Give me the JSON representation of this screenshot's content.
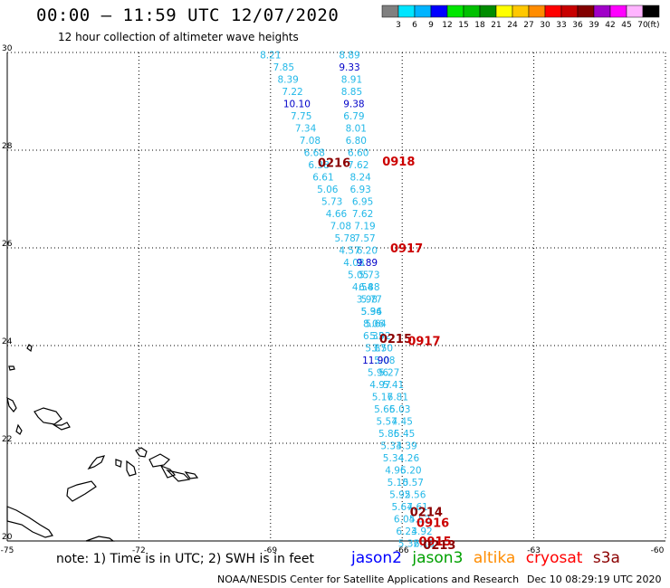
{
  "header": {
    "title": "00:00 – 11:59 UTC 12/07/2020",
    "subtitle": "12 hour collection of altimeter wave heights"
  },
  "legend": {
    "unit": "(ft)",
    "bins": [
      {
        "label": "3",
        "color": "#808080"
      },
      {
        "label": "6",
        "color": "#00e5ff"
      },
      {
        "label": "9",
        "color": "#00b4ff"
      },
      {
        "label": "12",
        "color": "#0000ff"
      },
      {
        "label": "15",
        "color": "#00e600"
      },
      {
        "label": "18",
        "color": "#00c000"
      },
      {
        "label": "21",
        "color": "#008c00"
      },
      {
        "label": "24",
        "color": "#ffff00"
      },
      {
        "label": "27",
        "color": "#ffc800"
      },
      {
        "label": "30",
        "color": "#ff8c00"
      },
      {
        "label": "33",
        "color": "#ff0000"
      },
      {
        "label": "36",
        "color": "#c80000"
      },
      {
        "label": "39",
        "color": "#820000"
      },
      {
        "label": "42",
        "color": "#a000c8"
      },
      {
        "label": "45",
        "color": "#ff00ff"
      },
      {
        "label": "70",
        "color": "#ffb4ff"
      },
      {
        "label": "",
        "color": "#000000"
      }
    ]
  },
  "axes": {
    "lon_ticks": [
      "-75",
      "-72",
      "-69",
      "-66",
      "-63",
      "-60"
    ],
    "lat_ticks": [
      "30",
      "28",
      "26",
      "24",
      "22",
      "20"
    ],
    "lon_range": [
      -75,
      -60
    ],
    "lat_range": [
      20,
      30
    ],
    "grid": "dotted"
  },
  "tracks": {
    "west": [
      {
        "lon": -69.0,
        "lat": 29.95,
        "v": "8.21",
        "color": "#22b8e8"
      },
      {
        "lon": -68.7,
        "lat": 29.7,
        "v": "7.85",
        "color": "#22b8e8"
      },
      {
        "lon": -68.6,
        "lat": 29.45,
        "v": "8.39",
        "color": "#22b8e8"
      },
      {
        "lon": -68.5,
        "lat": 29.2,
        "v": "7.22",
        "color": "#22b8e8"
      },
      {
        "lon": -68.4,
        "lat": 28.95,
        "v": "10.10",
        "color": "#0000c8"
      },
      {
        "lon": -68.3,
        "lat": 28.7,
        "v": "7.75",
        "color": "#22b8e8"
      },
      {
        "lon": -68.2,
        "lat": 28.45,
        "v": "7.34",
        "color": "#22b8e8"
      },
      {
        "lon": -68.1,
        "lat": 28.2,
        "v": "7.08",
        "color": "#22b8e8"
      },
      {
        "lon": -68.0,
        "lat": 27.95,
        "v": "6.68",
        "color": "#22b8e8"
      },
      {
        "lon": -67.9,
        "lat": 27.7,
        "v": "6.38",
        "color": "#22b8e8"
      },
      {
        "lon": -67.8,
        "lat": 27.45,
        "v": "6.61",
        "color": "#22b8e8"
      },
      {
        "lon": -67.7,
        "lat": 27.2,
        "v": "5.06",
        "color": "#22b8e8"
      },
      {
        "lon": -67.6,
        "lat": 26.95,
        "v": "5.73",
        "color": "#22b8e8"
      },
      {
        "lon": -67.5,
        "lat": 26.7,
        "v": "4.66",
        "color": "#22b8e8"
      },
      {
        "lon": -67.4,
        "lat": 26.45,
        "v": "7.08",
        "color": "#22b8e8"
      },
      {
        "lon": -67.3,
        "lat": 26.2,
        "v": "5.78",
        "color": "#22b8e8"
      },
      {
        "lon": -67.2,
        "lat": 25.95,
        "v": "4.57",
        "color": "#22b8e8"
      },
      {
        "lon": -67.1,
        "lat": 25.7,
        "v": "4.08",
        "color": "#22b8e8"
      },
      {
        "lon": -67.0,
        "lat": 25.45,
        "v": "5.05",
        "color": "#22b8e8"
      },
      {
        "lon": -66.9,
        "lat": 25.2,
        "v": "4.54",
        "color": "#22b8e8"
      },
      {
        "lon": -66.8,
        "lat": 24.95,
        "v": "3.98",
        "color": "#22b8e8"
      },
      {
        "lon": -66.7,
        "lat": 24.7,
        "v": "5.34",
        "color": "#22b8e8"
      },
      {
        "lon": -66.6,
        "lat": 24.45,
        "v": "5.64",
        "color": "#22b8e8"
      },
      {
        "lon": -66.5,
        "lat": 24.2,
        "v": "5.92",
        "color": "#22b8e8"
      },
      {
        "lon": -66.45,
        "lat": 23.95,
        "v": "3.50",
        "color": "#22b8e8"
      },
      {
        "lon": -66.4,
        "lat": 23.7,
        "v": "5.08",
        "color": "#22b8e8"
      },
      {
        "lon": -66.3,
        "lat": 23.45,
        "v": "5.27",
        "color": "#22b8e8"
      },
      {
        "lon": -66.2,
        "lat": 23.2,
        "v": "5.41",
        "color": "#22b8e8"
      },
      {
        "lon": -66.1,
        "lat": 22.95,
        "v": "6.81",
        "color": "#22b8e8"
      },
      {
        "lon": -66.05,
        "lat": 22.7,
        "v": "5.03",
        "color": "#22b8e8"
      },
      {
        "lon": -66.0,
        "lat": 22.45,
        "v": "4.45",
        "color": "#22b8e8"
      },
      {
        "lon": -65.95,
        "lat": 22.2,
        "v": "5.45",
        "color": "#22b8e8"
      },
      {
        "lon": -65.9,
        "lat": 21.95,
        "v": "4.39",
        "color": "#22b8e8"
      },
      {
        "lon": -65.85,
        "lat": 21.7,
        "v": "4.26",
        "color": "#22b8e8"
      },
      {
        "lon": -65.8,
        "lat": 21.45,
        "v": "5.20",
        "color": "#22b8e8"
      },
      {
        "lon": -65.75,
        "lat": 21.2,
        "v": "5.57",
        "color": "#22b8e8"
      },
      {
        "lon": -65.7,
        "lat": 20.95,
        "v": "5.56",
        "color": "#22b8e8"
      },
      {
        "lon": -65.65,
        "lat": 20.7,
        "v": "4.61",
        "color": "#22b8e8"
      },
      {
        "lon": -65.6,
        "lat": 20.45,
        "v": "5.52",
        "color": "#22b8e8"
      },
      {
        "lon": -65.55,
        "lat": 20.2,
        "v": "4.92",
        "color": "#22b8e8"
      },
      {
        "lon": -65.5,
        "lat": 19.95,
        "v": "6.13",
        "color": "#22b8e8"
      }
    ],
    "east": [
      {
        "lon": -67.2,
        "lat": 29.95,
        "v": "8.89",
        "color": "#22b8e8"
      },
      {
        "lon": -67.2,
        "lat": 29.7,
        "v": "9.33",
        "color": "#0000c8"
      },
      {
        "lon": -67.15,
        "lat": 29.45,
        "v": "8.91",
        "color": "#22b8e8"
      },
      {
        "lon": -67.15,
        "lat": 29.2,
        "v": "8.85",
        "color": "#22b8e8"
      },
      {
        "lon": -67.1,
        "lat": 28.95,
        "v": "9.38",
        "color": "#0000c8"
      },
      {
        "lon": -67.1,
        "lat": 28.7,
        "v": "6.79",
        "color": "#22b8e8"
      },
      {
        "lon": -67.05,
        "lat": 28.45,
        "v": "8.01",
        "color": "#22b8e8"
      },
      {
        "lon": -67.05,
        "lat": 28.2,
        "v": "6.80",
        "color": "#22b8e8"
      },
      {
        "lon": -67.0,
        "lat": 27.95,
        "v": "6.60",
        "color": "#22b8e8"
      },
      {
        "lon": -67.0,
        "lat": 27.7,
        "v": "7.62",
        "color": "#22b8e8"
      },
      {
        "lon": -66.95,
        "lat": 27.45,
        "v": "8.24",
        "color": "#22b8e8"
      },
      {
        "lon": -66.95,
        "lat": 27.2,
        "v": "6.93",
        "color": "#22b8e8"
      },
      {
        "lon": -66.9,
        "lat": 26.95,
        "v": "6.95",
        "color": "#22b8e8"
      },
      {
        "lon": -66.9,
        "lat": 26.7,
        "v": "7.62",
        "color": "#22b8e8"
      },
      {
        "lon": -66.85,
        "lat": 26.45,
        "v": "7.19",
        "color": "#22b8e8"
      },
      {
        "lon": -66.85,
        "lat": 26.2,
        "v": "7.57",
        "color": "#22b8e8"
      },
      {
        "lon": -66.8,
        "lat": 25.95,
        "v": "6.20",
        "color": "#22b8e8"
      },
      {
        "lon": -66.8,
        "lat": 25.7,
        "v": "9.89",
        "color": "#0000c8"
      },
      {
        "lon": -66.75,
        "lat": 25.45,
        "v": "5.73",
        "color": "#22b8e8"
      },
      {
        "lon": -66.75,
        "lat": 25.2,
        "v": "6.88",
        "color": "#22b8e8"
      },
      {
        "lon": -66.7,
        "lat": 24.95,
        "v": "5.77",
        "color": "#22b8e8"
      },
      {
        "lon": -66.7,
        "lat": 24.7,
        "v": "5.96",
        "color": "#22b8e8"
      },
      {
        "lon": -66.65,
        "lat": 24.45,
        "v": "8.06",
        "color": "#22b8e8"
      },
      {
        "lon": -66.65,
        "lat": 24.2,
        "v": "6.33",
        "color": "#22b8e8"
      },
      {
        "lon": -66.6,
        "lat": 23.95,
        "v": "5.87",
        "color": "#22b8e8"
      },
      {
        "lon": -66.6,
        "lat": 23.7,
        "v": "11.90",
        "color": "#0000c8"
      },
      {
        "lon": -66.55,
        "lat": 23.45,
        "v": "5.96",
        "color": "#22b8e8"
      },
      {
        "lon": -66.5,
        "lat": 23.2,
        "v": "4.97",
        "color": "#22b8e8"
      },
      {
        "lon": -66.45,
        "lat": 22.95,
        "v": "5.17",
        "color": "#22b8e8"
      },
      {
        "lon": -66.4,
        "lat": 22.7,
        "v": "5.66",
        "color": "#22b8e8"
      },
      {
        "lon": -66.35,
        "lat": 22.45,
        "v": "5.57",
        "color": "#22b8e8"
      },
      {
        "lon": -66.3,
        "lat": 22.2,
        "v": "5.86",
        "color": "#22b8e8"
      },
      {
        "lon": -66.25,
        "lat": 21.95,
        "v": "5.33",
        "color": "#22b8e8"
      },
      {
        "lon": -66.2,
        "lat": 21.7,
        "v": "5.34",
        "color": "#22b8e8"
      },
      {
        "lon": -66.15,
        "lat": 21.45,
        "v": "4.96",
        "color": "#22b8e8"
      },
      {
        "lon": -66.1,
        "lat": 21.2,
        "v": "5.10",
        "color": "#22b8e8"
      },
      {
        "lon": -66.05,
        "lat": 20.95,
        "v": "5.92",
        "color": "#22b8e8"
      },
      {
        "lon": -66.0,
        "lat": 20.7,
        "v": "5.67",
        "color": "#22b8e8"
      },
      {
        "lon": -65.95,
        "lat": 20.45,
        "v": "6.04",
        "color": "#22b8e8"
      },
      {
        "lon": -65.9,
        "lat": 20.2,
        "v": "6.23",
        "color": "#22b8e8"
      },
      {
        "lon": -65.85,
        "lat": 19.95,
        "v": "5.32",
        "color": "#22b8e8"
      }
    ],
    "time_labels": [
      {
        "lon": -67.55,
        "lat": 27.75,
        "v": "0216",
        "color": "#8b0000"
      },
      {
        "lon": -66.08,
        "lat": 27.78,
        "v": "0918",
        "color": "#cc0000"
      },
      {
        "lon": -65.9,
        "lat": 26.0,
        "v": "0917",
        "color": "#cc0000"
      },
      {
        "lon": -66.15,
        "lat": 24.15,
        "v": "0215",
        "color": "#8b0000"
      },
      {
        "lon": -65.5,
        "lat": 24.1,
        "v": "0917",
        "color": "#cc0000"
      },
      {
        "lon": -65.45,
        "lat": 20.6,
        "v": "0214",
        "color": "#8b0000"
      },
      {
        "lon": -65.3,
        "lat": 20.38,
        "v": "0916",
        "color": "#cc0000"
      },
      {
        "lon": -65.25,
        "lat": 20.0,
        "v": "0915",
        "color": "#cc0000"
      },
      {
        "lon": -65.15,
        "lat": 19.93,
        "v": "0213",
        "color": "#8b0000"
      }
    ]
  },
  "footer": {
    "note": "note: 1) Time is in UTC; 2) SWH is in feet",
    "satellites": [
      {
        "name": "jason2",
        "color": "#0000ff"
      },
      {
        "name": "jason3",
        "color": "#00a000"
      },
      {
        "name": "altika",
        "color": "#ff8c00"
      },
      {
        "name": "cryosat",
        "color": "#ff0000"
      },
      {
        "name": "s3a",
        "color": "#8b0000"
      }
    ],
    "credit": "NOAA/NESDIS Center for Satellite Applications and Research",
    "timestamp": "Dec 10 08:29:19 UTC 2020"
  }
}
